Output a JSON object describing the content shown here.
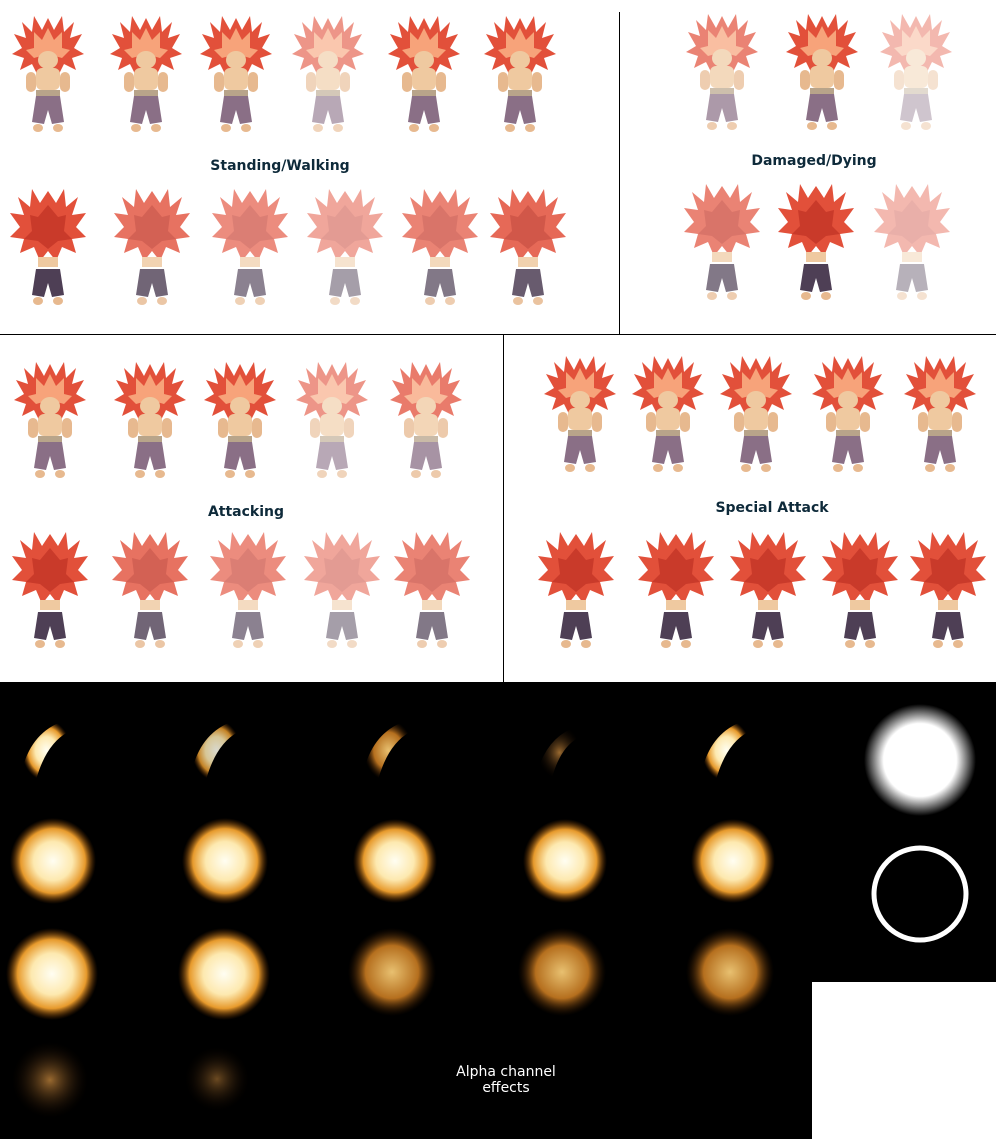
{
  "sections": {
    "standing": "Standing/Walking",
    "damaged": "Damaged/Dying",
    "attacking": "Attacking",
    "special": "Special Attack"
  },
  "alpha": {
    "line1": "Alpha channel",
    "line2": "effects"
  },
  "colors": {
    "hair": "#e2503a",
    "hair_light": "#f7a37a",
    "pants": "#8a6f86",
    "skin": "#efc9a0",
    "fire_core": "#fffbe6",
    "fire_edge": "#d2811c"
  }
}
